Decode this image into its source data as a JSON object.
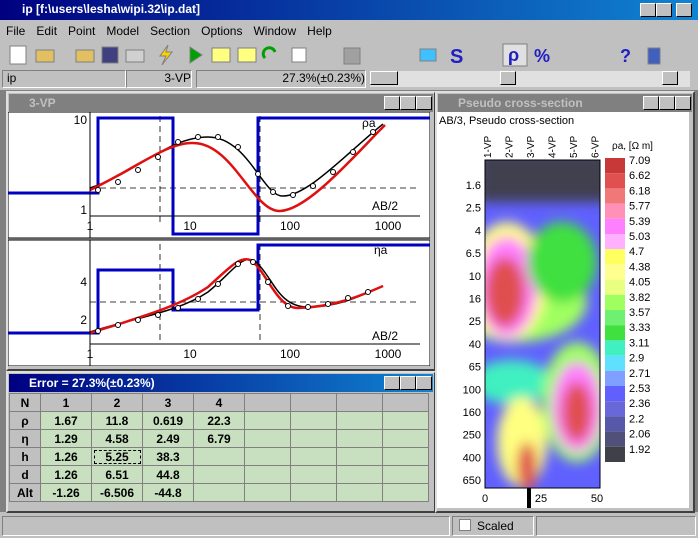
{
  "window_title": "ip [f:\\users\\lesha\\wipi.32\\ip.dat]",
  "menu": [
    "File",
    "Edit",
    "Point",
    "Model",
    "Section",
    "Options",
    "Window",
    "Help"
  ],
  "toolbar_glyphs": [
    "S",
    "ρ",
    "%",
    "?"
  ],
  "status": {
    "left": "ip",
    "middle": "3-VP",
    "error": "27.3%(±0.23%)"
  },
  "vp_window": {
    "title": "3-VP",
    "top_plot": {
      "y_label": "ρa",
      "x_label": "AB/2",
      "yticks": [
        "10",
        "1"
      ],
      "xticks": [
        "1",
        "10",
        "100",
        "1000"
      ]
    },
    "bottom_plot": {
      "y_label": "ηa",
      "x_label": "AB/2",
      "yticks": [
        "4",
        "2"
      ],
      "xticks": [
        "1",
        "10",
        "100",
        "1000"
      ]
    }
  },
  "error_window": {
    "title": "Error = 27.3%(±0.23%)",
    "table": {
      "header": [
        "N",
        "1",
        "2",
        "3",
        "4"
      ],
      "rows": [
        [
          "ρ",
          "1.67",
          "11.8",
          "0.619",
          "22.3"
        ],
        [
          "η",
          "1.29",
          "4.58",
          "2.49",
          "6.79"
        ],
        [
          "h",
          "1.26",
          "5.25",
          "38.3"
        ],
        [
          "d",
          "1.26",
          "6.51",
          "44.8"
        ],
        [
          "Alt",
          "-1.26",
          "-6.506",
          "-44.8"
        ]
      ]
    }
  },
  "section_window": {
    "title": "Pseudo cross-section",
    "subtitle": "AB/3, Pseudo cross-section",
    "columns": [
      "1-VP",
      "2-VP",
      "3-VP",
      "4-VP",
      "5-VP",
      "6-VP"
    ],
    "depths": [
      "1.6",
      "2.5",
      "4",
      "6.5",
      "10",
      "16",
      "25",
      "40",
      "65",
      "100",
      "160",
      "250",
      "400",
      "650"
    ],
    "xticks": [
      "0",
      "25",
      "50"
    ],
    "legend_title": "ρa, [Ω m]",
    "legend": [
      "7.09",
      "6.62",
      "6.18",
      "5.77",
      "5.39",
      "5.03",
      "4.7",
      "4.38",
      "4.05",
      "3.82",
      "3.57",
      "3.33",
      "3.11",
      "2.9",
      "2.71",
      "2.53",
      "2.36",
      "2.2",
      "2.06",
      "1.92"
    ],
    "legend_colors": [
      "#c83838",
      "#e05050",
      "#f07878",
      "#ff90b8",
      "#ff80ff",
      "#ffb0ff",
      "#ffff60",
      "#ffff90",
      "#e8ff80",
      "#a0ff60",
      "#70f070",
      "#40e040",
      "#40f0c0",
      "#60e0ff",
      "#80a0ff",
      "#6060ff",
      "#6868d8",
      "#5858a8",
      "#505078",
      "#404048"
    ]
  },
  "statusbar": {
    "scaled": "Scaled"
  }
}
